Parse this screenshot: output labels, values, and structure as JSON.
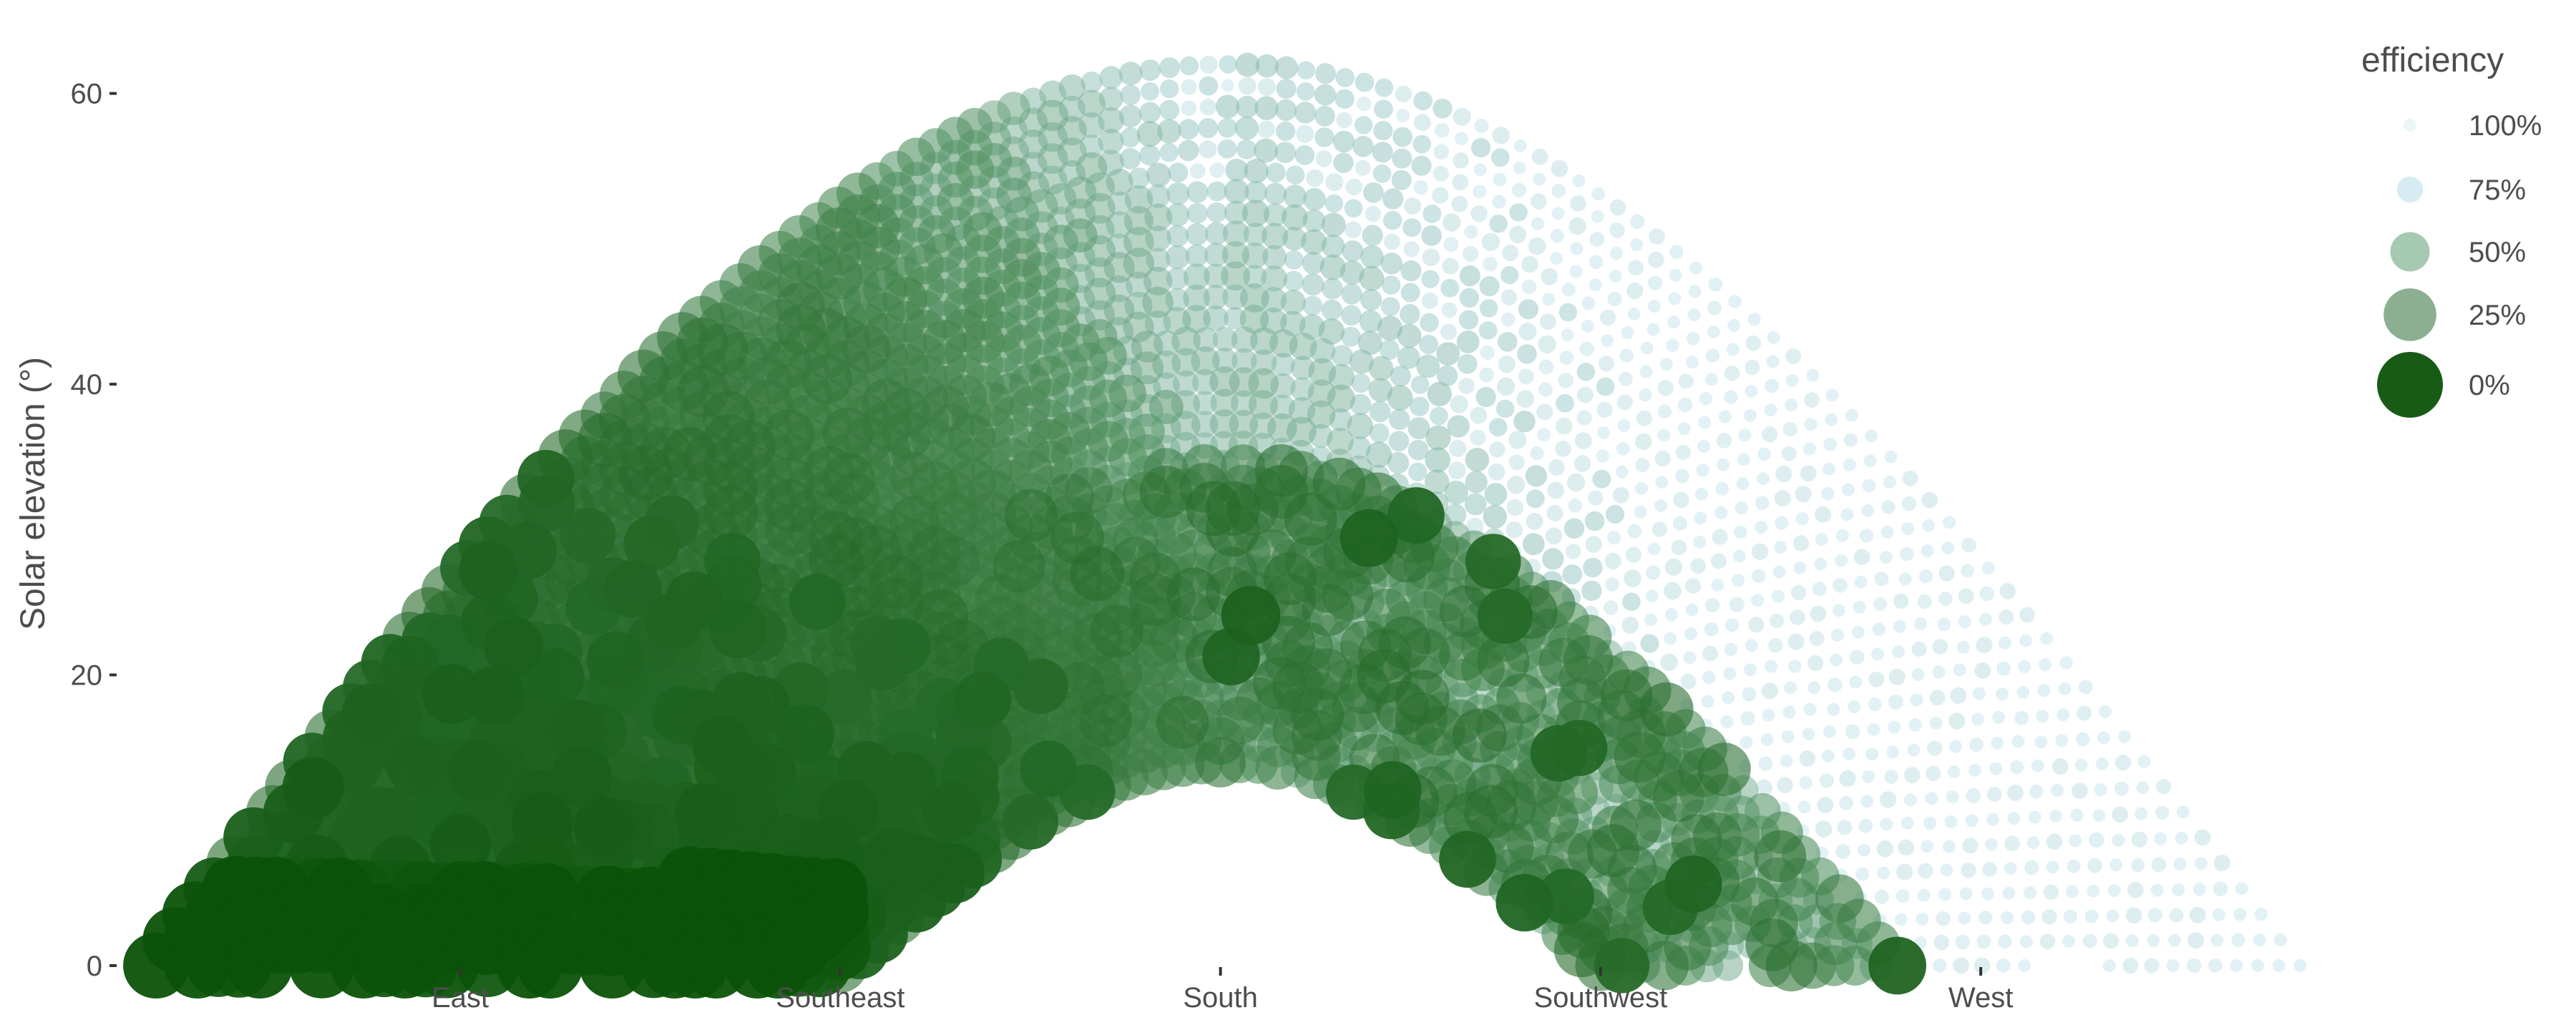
{
  "chart_data": {
    "type": "scatter",
    "title": "",
    "xlabel": "",
    "ylabel": "Solar elevation (°)",
    "ylim": [
      0,
      62
    ],
    "y_ticks": [
      {
        "value": 0,
        "label": "0"
      },
      {
        "value": 20,
        "label": "20"
      },
      {
        "value": 40,
        "label": "40"
      },
      {
        "value": 60,
        "label": "60"
      }
    ],
    "xlim": [
      45,
      333
    ],
    "x_ticks": [
      {
        "value": 90,
        "label": "East"
      },
      {
        "value": 140,
        "label": "Southeast"
      },
      {
        "value": 190,
        "label": "South"
      },
      {
        "value": 240,
        "label": "Southwest"
      },
      {
        "value": 290,
        "label": "West"
      }
    ],
    "grid": false,
    "legend_position": "right",
    "size_legend": {
      "title": "efficiency",
      "entries": [
        {
          "label": "100%",
          "value": 1.0,
          "color": "#c7e3ec"
        },
        {
          "label": "75%",
          "value": 0.75,
          "color": "#add8e6"
        },
        {
          "label": "50%",
          "value": 0.5,
          "color": "#6aa57e"
        },
        {
          "label": "25%",
          "value": 0.25,
          "color": "#3d7a46"
        },
        {
          "label": "0%",
          "value": 0.0,
          "color": "#0b5208"
        }
      ]
    },
    "color_low": "#0b5208",
    "color_mid": "#4f8f5c",
    "color_high": "#add8e6",
    "series_description": [
      {
        "day_max_elevation": 62,
        "sunrise_azimuth": 50,
        "sunset_azimuth": 332
      },
      {
        "day_max_elevation": 14,
        "sunrise_azimuth": 140,
        "sunset_azimuth": 240
      }
    ],
    "shading_cutoff_azimuth": 140,
    "shaded_elevation_below": 6
  }
}
